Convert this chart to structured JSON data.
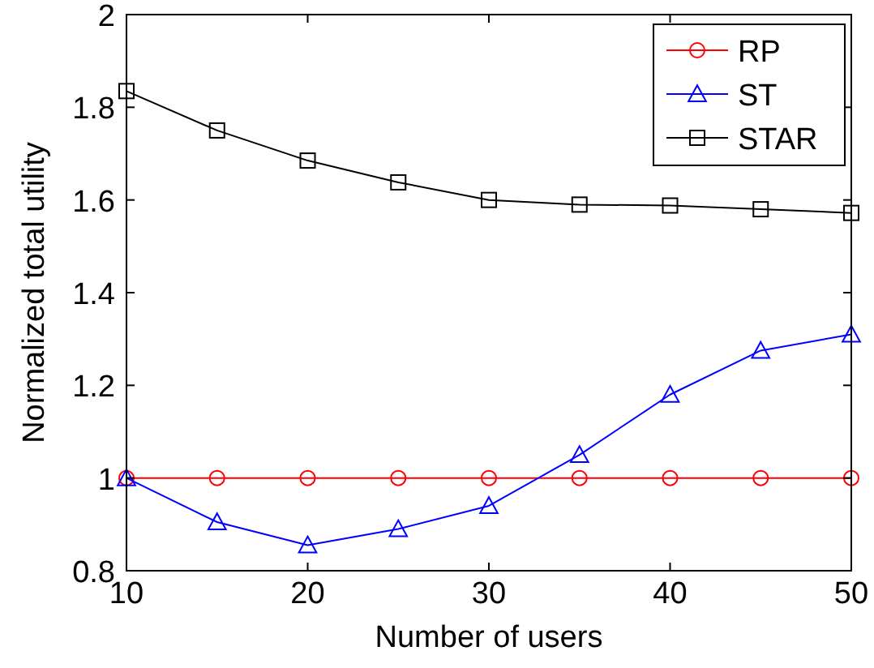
{
  "chart_data": {
    "type": "line",
    "xlabel": "Number of users",
    "ylabel": "Normalized total utility",
    "x": [
      10,
      15,
      20,
      25,
      30,
      35,
      40,
      45,
      50
    ],
    "series": [
      {
        "name": "RP",
        "color": "#ff0000",
        "marker": "circle",
        "values": [
          1,
          1,
          1,
          1,
          1,
          1,
          1,
          1,
          1
        ]
      },
      {
        "name": "ST",
        "color": "#0000ff",
        "marker": "triangle",
        "values": [
          1.0,
          0.905,
          0.855,
          0.89,
          0.94,
          1.05,
          1.18,
          1.275,
          1.31
        ]
      },
      {
        "name": "STAR",
        "color": "#000000",
        "marker": "square",
        "values": [
          1.835,
          1.75,
          1.685,
          1.638,
          1.6,
          1.59,
          1.588,
          1.58,
          1.572
        ]
      }
    ],
    "xlim": [
      10,
      50
    ],
    "xticks": [
      10,
      20,
      30,
      40,
      50
    ],
    "ylim": [
      0.8,
      2
    ],
    "yticks": [
      0.8,
      1,
      1.2,
      1.4,
      1.6,
      1.8,
      2
    ],
    "grid": false,
    "legend": "top right",
    "line_style": "solid"
  }
}
